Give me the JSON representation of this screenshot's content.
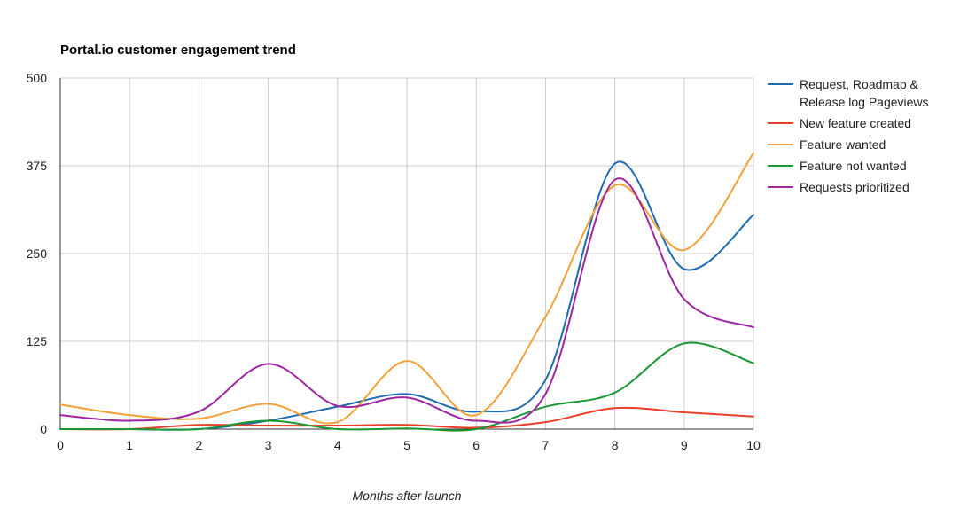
{
  "chart_data": {
    "type": "line",
    "title": "Portal.io customer engagement trend",
    "xlabel": "Months after launch",
    "ylabel": "",
    "x": [
      0,
      1,
      2,
      3,
      4,
      5,
      6,
      7,
      8,
      9,
      10
    ],
    "xlim": [
      0,
      10
    ],
    "ylim": [
      0,
      500
    ],
    "yticks": [
      0,
      125,
      250,
      375,
      500
    ],
    "xticks": [
      0,
      1,
      2,
      3,
      4,
      5,
      6,
      7,
      8,
      9,
      10
    ],
    "grid": true,
    "legend_position": "right",
    "series": [
      {
        "name_lines": [
          "Request, Roadmap &",
          "Release log Pageviews"
        ],
        "color": "#1f6bb0",
        "values": [
          0,
          0,
          0,
          12,
          32,
          50,
          25,
          70,
          378,
          228,
          305
        ]
      },
      {
        "name_lines": [
          "New feature created"
        ],
        "color": "#e8412b",
        "values": [
          0,
          0,
          6,
          5,
          5,
          6,
          2,
          10,
          30,
          24,
          18
        ]
      },
      {
        "name_lines": [
          "Feature wanted"
        ],
        "color": "#f2a23a",
        "values": [
          35,
          20,
          15,
          36,
          10,
          97,
          20,
          160,
          347,
          255,
          393
        ]
      },
      {
        "name_lines": [
          "Feature not wanted"
        ],
        "color": "#1a9632",
        "values": [
          0,
          0,
          0,
          12,
          0,
          1,
          0,
          32,
          52,
          122,
          94
        ]
      },
      {
        "name_lines": [
          "Requests prioritized"
        ],
        "color": "#9c27a0",
        "values": [
          20,
          12,
          25,
          93,
          33,
          45,
          12,
          50,
          355,
          185,
          145
        ]
      }
    ]
  }
}
